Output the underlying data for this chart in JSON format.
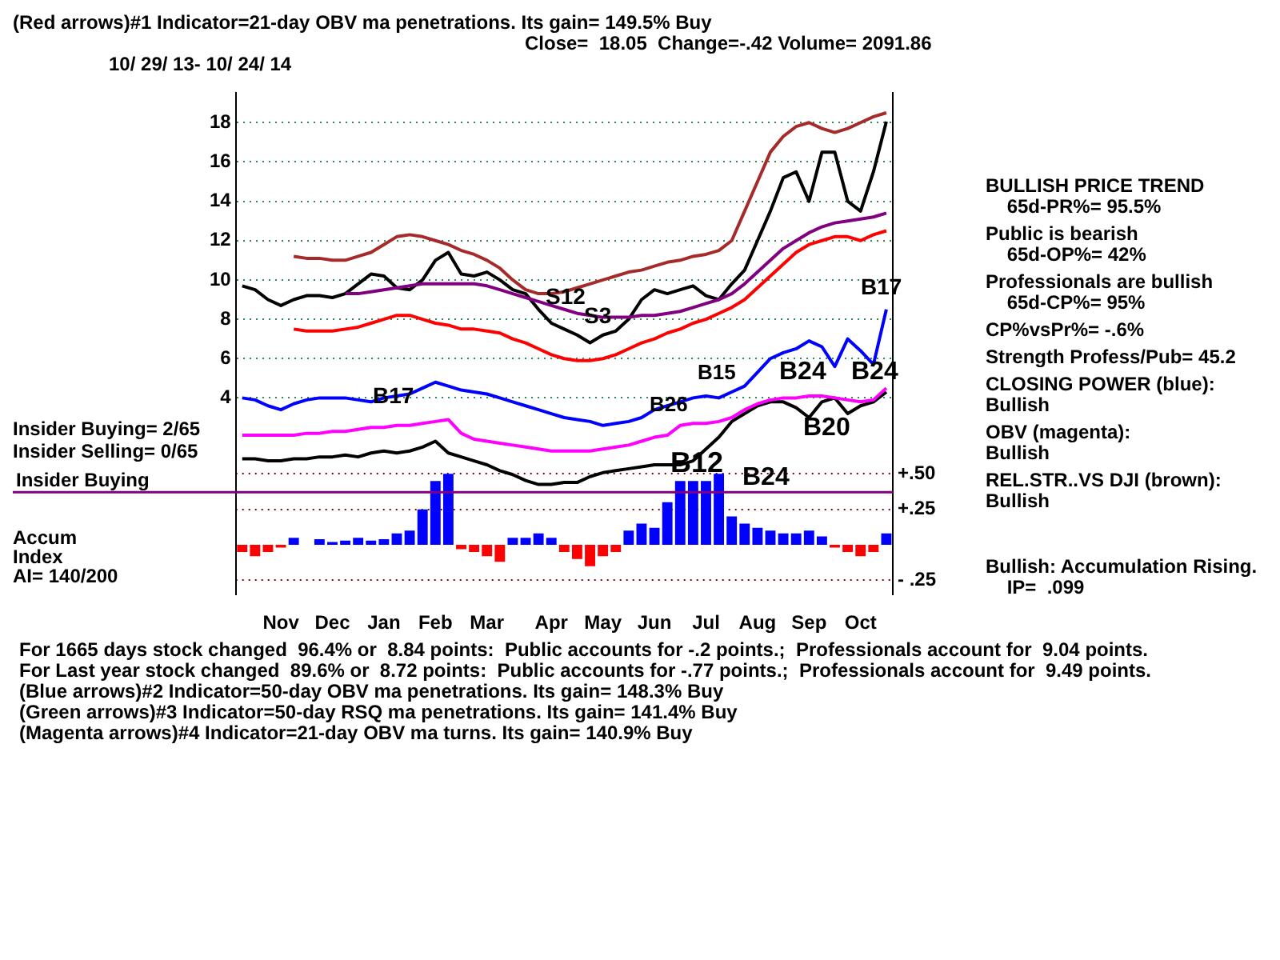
{
  "chart_data": [
    {
      "type": "other",
      "title": "(Red arrows)#1 Indicator=21-day OBV ma penetrations. Its gain= 149.5% Buy",
      "subtitle": "Close=  18.05  Change=-.42 Volume= 2091.86",
      "annotations": [
        "10/ 29/ 13- 10/ 24/ 14"
      ]
    },
    {
      "type": "line",
      "categories": [
        null,
        null,
        null,
        "Nov",
        null,
        null,
        null,
        "Dec",
        null,
        null,
        null,
        "Jan",
        null,
        null,
        null,
        "Feb",
        null,
        null,
        null,
        "Mar",
        null,
        null,
        null,
        null,
        "Apr",
        null,
        null,
        null,
        "May",
        null,
        null,
        null,
        "Jun",
        null,
        null,
        null,
        "Jul",
        null,
        null,
        null,
        "Aug",
        null,
        null,
        null,
        "Sep",
        null,
        null,
        null,
        "Oct",
        null,
        null
      ],
      "ylim": [
        -6,
        19.5
      ],
      "yticks": [
        4,
        6,
        8,
        10,
        12,
        14,
        16,
        18
      ],
      "y2lim": [
        -0.35,
        3.18
      ],
      "y2ticks": [
        {
          "value": 0.5,
          "label": "+.50"
        },
        {
          "value": 0.25,
          "label": "+.25"
        },
        {
          "value": -0.25,
          "label": "- .25"
        }
      ],
      "grid": "y",
      "legend": false,
      "marker": "none",
      "series": [
        {
          "color": "#a52a2a",
          "values": [
            null,
            null,
            null,
            null,
            11.2,
            11.1,
            11.1,
            11.0,
            11.0,
            11.2,
            11.4,
            11.8,
            12.2,
            12.3,
            12.2,
            12.0,
            11.8,
            11.5,
            11.3,
            11.0,
            10.6,
            10.0,
            9.5,
            9.3,
            9.3,
            9.4,
            9.6,
            9.8,
            10.0,
            10.2,
            10.4,
            10.5,
            10.7,
            10.9,
            11.0,
            11.2,
            11.3,
            11.5,
            12.0,
            13.5,
            15.0,
            16.5,
            17.3,
            17.8,
            18.0,
            17.7,
            17.5,
            17.7,
            18.0,
            18.3,
            18.5
          ]
        },
        {
          "color": "#ff0000",
          "values": [
            null,
            null,
            null,
            null,
            7.5,
            7.4,
            7.4,
            7.4,
            7.5,
            7.6,
            7.8,
            8.0,
            8.2,
            8.2,
            8.0,
            7.8,
            7.7,
            7.5,
            7.5,
            7.4,
            7.3,
            7.0,
            6.8,
            6.5,
            6.2,
            6.0,
            5.9,
            5.9,
            6.0,
            6.2,
            6.5,
            6.8,
            7.0,
            7.3,
            7.5,
            7.8,
            8.0,
            8.3,
            8.6,
            9.0,
            9.6,
            10.2,
            10.8,
            11.4,
            11.8,
            12.0,
            12.2,
            12.2,
            12.0,
            12.3,
            12.5
          ]
        },
        {
          "color": "#800080",
          "values": [
            null,
            null,
            null,
            null,
            null,
            null,
            null,
            null,
            9.3,
            9.3,
            9.4,
            9.5,
            9.6,
            9.7,
            9.8,
            9.8,
            9.8,
            9.8,
            9.8,
            9.7,
            9.5,
            9.3,
            9.1,
            8.9,
            8.7,
            8.5,
            8.3,
            8.2,
            8.1,
            8.1,
            8.1,
            8.2,
            8.2,
            8.3,
            8.4,
            8.6,
            8.8,
            9.0,
            9.3,
            9.8,
            10.4,
            11.0,
            11.6,
            12.0,
            12.4,
            12.7,
            12.9,
            13.0,
            13.1,
            13.2,
            13.4
          ]
        },
        {
          "color": "#000000",
          "values": [
            9.7,
            9.5,
            9.0,
            8.7,
            9.0,
            9.2,
            9.2,
            9.1,
            9.3,
            9.8,
            10.3,
            10.2,
            9.6,
            9.5,
            10.0,
            11.0,
            11.4,
            10.3,
            10.2,
            10.4,
            10.0,
            9.5,
            9.3,
            8.5,
            7.8,
            7.5,
            7.2,
            6.8,
            7.2,
            7.4,
            8.0,
            9.0,
            9.5,
            9.3,
            9.5,
            9.7,
            9.2,
            9.0,
            9.8,
            10.5,
            12.0,
            13.5,
            15.2,
            15.5,
            14.0,
            16.5,
            16.5,
            14.0,
            13.5,
            15.5,
            18.05
          ]
        },
        {
          "color": "#0000ff",
          "values": [
            4.0,
            3.9,
            3.6,
            3.4,
            3.7,
            3.9,
            4.0,
            4.0,
            4.0,
            3.9,
            3.8,
            4.0,
            4.1,
            4.2,
            4.5,
            4.8,
            4.6,
            4.4,
            4.3,
            4.2,
            4.0,
            3.8,
            3.6,
            3.4,
            3.2,
            3.0,
            2.9,
            2.8,
            2.6,
            2.7,
            2.8,
            3.0,
            3.4,
            3.6,
            3.8,
            4.0,
            4.1,
            4.0,
            4.3,
            4.6,
            5.3,
            6.0,
            6.3,
            6.5,
            6.9,
            6.6,
            5.6,
            7.0,
            6.4,
            5.7,
            8.5
          ]
        },
        {
          "color": "#ff00ff",
          "values": [
            2.1,
            2.1,
            2.1,
            2.1,
            2.1,
            2.2,
            2.2,
            2.3,
            2.3,
            2.4,
            2.5,
            2.5,
            2.6,
            2.6,
            2.7,
            2.8,
            2.9,
            2.2,
            1.9,
            1.8,
            1.7,
            1.6,
            1.5,
            1.4,
            1.3,
            1.3,
            1.3,
            1.3,
            1.4,
            1.5,
            1.6,
            1.8,
            2.0,
            2.1,
            2.6,
            2.7,
            2.7,
            2.8,
            3.0,
            3.4,
            3.7,
            3.9,
            4.0,
            4.0,
            4.1,
            4.1,
            4.0,
            3.9,
            3.8,
            3.9,
            4.5
          ]
        },
        {
          "color": "#000000",
          "values": [
            0.9,
            0.9,
            0.8,
            0.8,
            0.9,
            0.9,
            1.0,
            1.0,
            1.1,
            1.0,
            1.2,
            1.3,
            1.2,
            1.3,
            1.5,
            1.8,
            1.2,
            1.0,
            0.8,
            0.6,
            0.3,
            0.1,
            -0.2,
            -0.4,
            -0.4,
            -0.3,
            -0.3,
            0.0,
            0.2,
            0.3,
            0.4,
            0.5,
            0.6,
            0.6,
            0.6,
            0.8,
            1.4,
            2.0,
            2.8,
            3.2,
            3.6,
            3.8,
            3.8,
            3.5,
            3.0,
            3.8,
            4.0,
            3.2,
            3.6,
            3.8,
            4.3
          ]
        },
        {
          "type": "bar",
          "axis": "y2",
          "color": "#0000ff",
          "values": [
            null,
            null,
            null,
            null,
            0.05,
            null,
            0.04,
            0.02,
            0.03,
            0.05,
            0.03,
            0.04,
            0.08,
            0.1,
            0.25,
            0.45,
            0.5,
            null,
            null,
            null,
            null,
            0.05,
            0.05,
            0.08,
            0.05,
            null,
            null,
            null,
            null,
            null,
            0.1,
            0.15,
            0.12,
            0.3,
            0.45,
            0.45,
            0.45,
            0.5,
            0.2,
            0.15,
            0.12,
            0.1,
            0.08,
            0.08,
            0.1,
            0.06,
            null,
            null,
            null,
            null,
            0.08
          ]
        },
        {
          "type": "bar",
          "axis": "y2",
          "color": "#ff0000",
          "values": [
            -0.05,
            -0.08,
            -0.05,
            -0.02,
            null,
            null,
            null,
            null,
            null,
            null,
            null,
            null,
            null,
            null,
            null,
            null,
            null,
            -0.03,
            -0.05,
            -0.08,
            -0.12,
            null,
            null,
            null,
            null,
            -0.05,
            -0.1,
            -0.15,
            -0.08,
            -0.05,
            null,
            null,
            null,
            null,
            null,
            null,
            null,
            null,
            null,
            null,
            null,
            null,
            null,
            null,
            null,
            null,
            -0.02,
            -0.05,
            -0.08,
            -0.05,
            null
          ]
        }
      ],
      "ref_lines": [
        {
          "axis": "y2",
          "value": 0.37,
          "label": "Insider Buying",
          "color": "#800080"
        }
      ],
      "annotations": [
        "B17",
        "S12",
        "S3",
        "B26",
        "B15",
        "B12",
        "B20",
        "B24",
        "B24",
        "B24",
        "B17",
        "Insider Buying= 2/65",
        "Insider Selling= 0/65",
        "Accum",
        "Index",
        "AI= 140/200"
      ]
    },
    {
      "type": "other",
      "annotations": [
        "BULLISH PRICE TREND",
        "    65d-PR%= 95.5%",
        "Public is bearish",
        "    65d-OP%= 42%",
        "Professionals are bullish",
        "    65d-CP%= 95%",
        "CP%vsPr%= -.6%",
        "Strength Profess/Pub= 45.2",
        "CLOSING POWER (blue):",
        "Bullish",
        "OBV (magenta):",
        "Bullish",
        "REL.STR..VS DJI (brown):",
        "Bullish",
        "Bullish: Accumulation Rising.",
        "    IP=  .099"
      ]
    },
    {
      "type": "other",
      "annotations": [
        "For 1665 days stock changed  96.4% or  8.84 points:  Public accounts for -.2 points.;  Professionals account for  9.04 points.",
        "For Last year stock changed  89.6% or  8.72 points:  Public accounts for -.77 points.;  Professionals account for  9.49 points.",
        "(Blue arrows)#2 Indicator=50-day OBV ma penetrations. Its gain= 148.3% Buy",
        "(Green arrows)#3 Indicator=50-day RSQ ma penetrations. Its gain= 141.4% Buy",
        "(Magenta arrows)#4 Indicator=21-day OBV ma turns. Its gain= 140.9% Buy"
      ]
    }
  ]
}
